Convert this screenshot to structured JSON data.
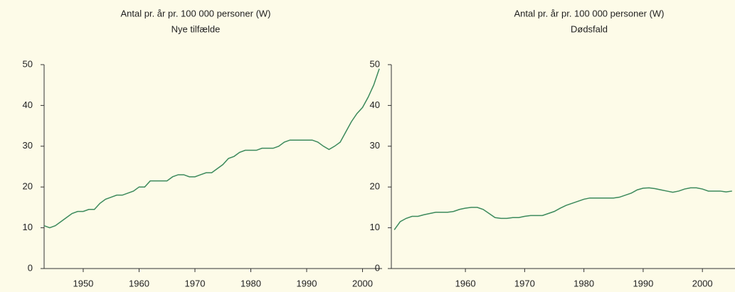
{
  "chart_data": [
    {
      "type": "line",
      "title": "Antal pr. år pr. 100 000 personer (W)",
      "subtitle": "Nye tilfælde",
      "x": [
        1943,
        1944,
        1945,
        1946,
        1947,
        1948,
        1949,
        1950,
        1951,
        1952,
        1953,
        1954,
        1955,
        1956,
        1957,
        1958,
        1959,
        1960,
        1961,
        1962,
        1963,
        1964,
        1965,
        1966,
        1967,
        1968,
        1969,
        1970,
        1971,
        1972,
        1973,
        1974,
        1975,
        1976,
        1977,
        1978,
        1979,
        1980,
        1981,
        1982,
        1983,
        1984,
        1985,
        1986,
        1987,
        1988,
        1989,
        1990,
        1991,
        1992,
        1993,
        1994,
        1995,
        1996,
        1997,
        1998,
        1999,
        2000,
        2001,
        2002,
        2003
      ],
      "series": [
        {
          "color": "#3c8a5c",
          "values": [
            10.5,
            10,
            10.5,
            11.5,
            12.5,
            13.5,
            14,
            14,
            14.5,
            14.5,
            16,
            17,
            17.5,
            18,
            18,
            18.5,
            19,
            20,
            20,
            21.5,
            21.5,
            21.5,
            21.5,
            22.5,
            23,
            23,
            22.5,
            22.5,
            23,
            23.5,
            23.5,
            24.5,
            25.5,
            27,
            27.5,
            28.5,
            29,
            29,
            29,
            29.5,
            29.5,
            29.5,
            30,
            31,
            31.5,
            31.5,
            31.5,
            31.5,
            31.5,
            31,
            30,
            29.2,
            30,
            31,
            33.5,
            36,
            38,
            39.5,
            42,
            45,
            49
          ]
        }
      ],
      "xlim": [
        1943,
        2003.5
      ],
      "xticks": [
        1950,
        1960,
        1970,
        1980,
        1990,
        2000
      ],
      "ylim": [
        0,
        50
      ],
      "yticks": [
        0,
        10,
        20,
        30,
        40,
        50
      ]
    },
    {
      "type": "line",
      "title": "Antal pr. år pr. 100 000 personer (W)",
      "subtitle": "Dødsfald",
      "x": [
        1948,
        1949,
        1950,
        1951,
        1952,
        1953,
        1954,
        1955,
        1956,
        1957,
        1958,
        1959,
        1960,
        1961,
        1962,
        1963,
        1964,
        1965,
        1966,
        1967,
        1968,
        1969,
        1970,
        1971,
        1972,
        1973,
        1974,
        1975,
        1976,
        1977,
        1978,
        1979,
        1980,
        1981,
        1982,
        1983,
        1984,
        1985,
        1986,
        1987,
        1988,
        1989,
        1990,
        1991,
        1992,
        1993,
        1994,
        1995,
        1996,
        1997,
        1998,
        1999,
        2000,
        2001,
        2002,
        2003,
        2004,
        2005
      ],
      "series": [
        {
          "color": "#3c8a5c",
          "values": [
            9.5,
            11.5,
            12.3,
            12.8,
            12.8,
            13.2,
            13.5,
            13.8,
            13.8,
            13.8,
            14,
            14.5,
            14.8,
            15,
            15,
            14.5,
            13.5,
            12.5,
            12.3,
            12.3,
            12.5,
            12.5,
            12.8,
            13,
            13,
            13,
            13.5,
            14,
            14.8,
            15.5,
            16,
            16.5,
            17,
            17.3,
            17.3,
            17.3,
            17.3,
            17.3,
            17.5,
            18,
            18.5,
            19.3,
            19.7,
            19.8,
            19.6,
            19.3,
            19,
            18.7,
            19,
            19.5,
            19.8,
            19.8,
            19.5,
            19,
            19,
            19,
            18.8,
            19
          ]
        }
      ],
      "xlim": [
        1947.5,
        2005.5
      ],
      "xticks": [
        1960,
        1970,
        1980,
        1990,
        2000
      ],
      "ylim": [
        0,
        50
      ],
      "yticks": [
        0,
        10,
        20,
        30,
        40,
        50
      ]
    }
  ]
}
